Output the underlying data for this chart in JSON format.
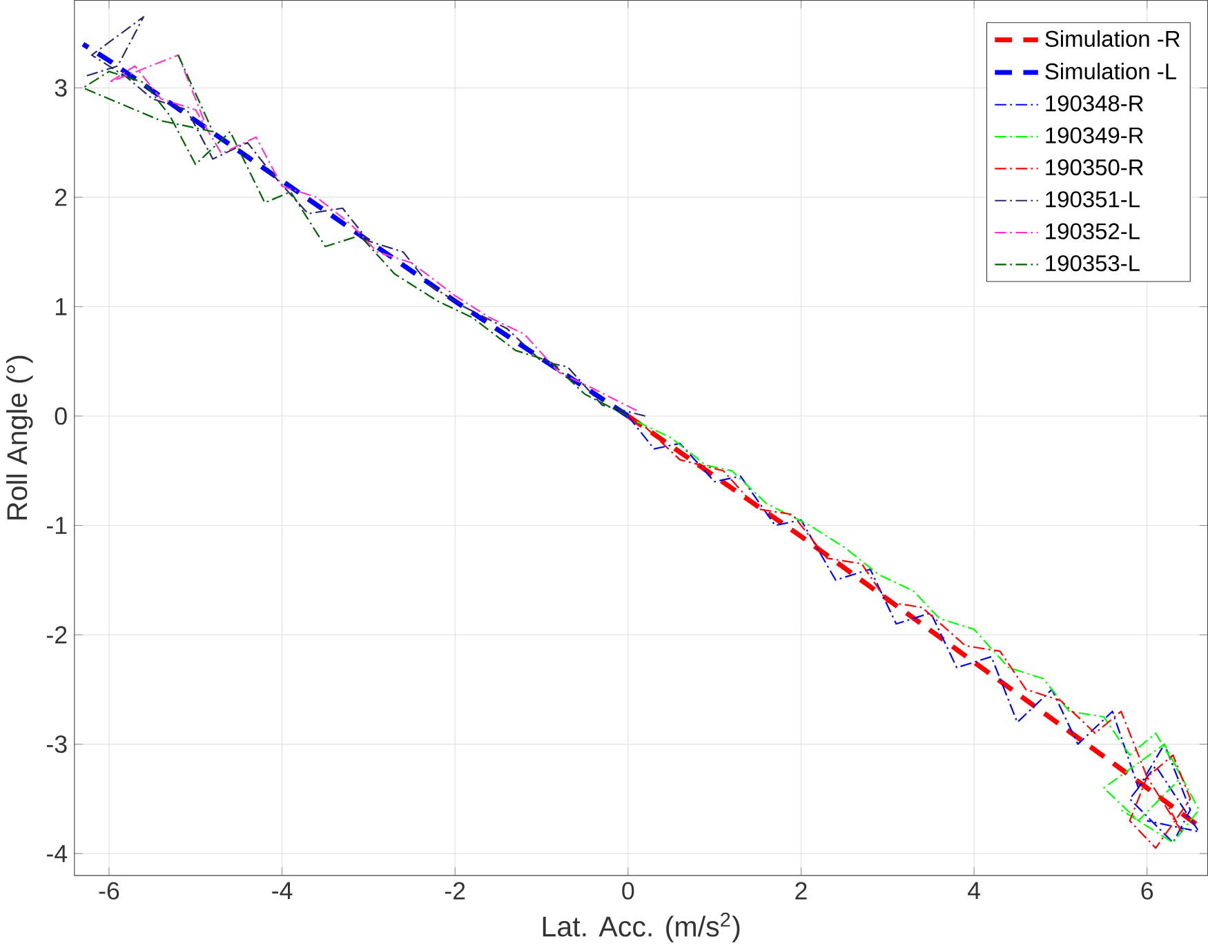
{
  "chart_data": {
    "type": "line",
    "xlabel": "Lat. Acc. (m/s$^{2}$)",
    "ylabel": "Roll Angle (°)",
    "xlim": [
      -6.4,
      6.7
    ],
    "ylim": [
      -4.2,
      3.8
    ],
    "xticks": [
      -6,
      -4,
      -2,
      0,
      2,
      4,
      6
    ],
    "yticks": [
      -4,
      -3,
      -2,
      -1,
      0,
      1,
      2,
      3
    ],
    "grid": true,
    "legend": "top right",
    "series": [
      {
        "name": "Simulation -R",
        "color": "#ff0000",
        "line_style": "dashed",
        "x": [
          0,
          2,
          4,
          6,
          6.6
        ],
        "values": [
          0,
          -1.1,
          -2.25,
          -3.4,
          -3.75
        ]
      },
      {
        "name": "Simulation -L",
        "color": "#0000ff",
        "line_style": "dashed",
        "x": [
          0,
          -2,
          -4,
          -6,
          -6.3
        ],
        "values": [
          0,
          1.05,
          2.15,
          3.25,
          3.4
        ]
      },
      {
        "name": "190348-R",
        "color": "#0000ff",
        "line_style": "dashdot",
        "x": [
          0,
          0.3,
          0.6,
          1.0,
          1.3,
          1.7,
          2.0,
          2.4,
          2.8,
          3.1,
          3.5,
          3.8,
          4.2,
          4.5,
          4.9,
          5.2,
          5.6,
          5.9,
          6.2,
          6.5,
          6.3,
          5.8,
          6.1,
          6.6,
          6.0
        ],
        "values": [
          0,
          -0.3,
          -0.25,
          -0.6,
          -0.55,
          -1.0,
          -0.95,
          -1.5,
          -1.4,
          -1.9,
          -1.8,
          -2.3,
          -2.2,
          -2.8,
          -2.5,
          -3.0,
          -2.7,
          -3.4,
          -3.0,
          -3.6,
          -3.9,
          -3.5,
          -3.2,
          -3.8,
          -3.7
        ]
      },
      {
        "name": "190349-R",
        "color": "#00ff00",
        "line_style": "dashdot",
        "x": [
          0.1,
          0.5,
          0.9,
          1.2,
          1.6,
          2.1,
          2.5,
          2.9,
          3.3,
          3.6,
          4.0,
          4.4,
          4.8,
          5.1,
          5.5,
          5.8,
          6.1,
          6.4,
          5.9,
          5.5,
          6.2,
          6.6,
          6.3,
          5.7
        ],
        "values": [
          -0.05,
          -0.2,
          -0.45,
          -0.5,
          -0.8,
          -1.0,
          -1.2,
          -1.45,
          -1.6,
          -1.85,
          -1.95,
          -2.3,
          -2.4,
          -2.7,
          -2.75,
          -3.1,
          -2.9,
          -3.3,
          -3.7,
          -3.4,
          -3.0,
          -3.6,
          -3.9,
          -3.6
        ]
      },
      {
        "name": "190350-R",
        "color": "#ff0000",
        "line_style": "dashdot",
        "x": [
          0.2,
          0.6,
          1.1,
          1.5,
          1.9,
          2.3,
          2.7,
          3.0,
          3.4,
          3.9,
          4.3,
          4.6,
          5.0,
          5.4,
          5.7,
          6.0,
          6.3,
          6.5,
          6.1,
          5.8,
          6.0,
          6.4,
          6.2
        ],
        "values": [
          -0.1,
          -0.4,
          -0.5,
          -0.85,
          -0.9,
          -1.3,
          -1.35,
          -1.7,
          -1.75,
          -2.1,
          -2.15,
          -2.5,
          -2.6,
          -2.9,
          -2.7,
          -3.3,
          -3.1,
          -3.5,
          -3.95,
          -3.7,
          -3.3,
          -3.8,
          -3.5
        ]
      },
      {
        "name": "190351-L",
        "color": "#2b2b66",
        "line_style": "dashdot",
        "x": [
          0.2,
          -0.3,
          -0.7,
          -1.0,
          -1.4,
          -1.9,
          -2.3,
          -2.6,
          -3.0,
          -3.3,
          -3.7,
          -4.1,
          -4.4,
          -4.8,
          -5.1,
          -5.5,
          -5.8,
          -6.2,
          -5.6,
          -5.9,
          -6.3
        ],
        "values": [
          0,
          0.1,
          0.45,
          0.5,
          0.8,
          1.0,
          1.2,
          1.5,
          1.6,
          1.9,
          1.85,
          2.2,
          2.5,
          2.35,
          2.8,
          2.9,
          3.1,
          3.3,
          3.65,
          3.2,
          3.1
        ]
      },
      {
        "name": "190352-L",
        "color": "#ff33cc",
        "line_style": "dashdot",
        "x": [
          0.1,
          -0.4,
          -0.8,
          -1.2,
          -1.6,
          -2.0,
          -2.5,
          -2.9,
          -3.2,
          -3.6,
          -4.0,
          -4.3,
          -4.7,
          -5.0,
          -5.4,
          -5.7,
          -6.0,
          -5.2,
          -4.9
        ],
        "values": [
          0.05,
          0.25,
          0.4,
          0.75,
          0.9,
          1.1,
          1.4,
          1.5,
          1.75,
          2.0,
          2.1,
          2.55,
          2.4,
          2.8,
          2.9,
          3.2,
          3.05,
          3.3,
          2.7
        ]
      },
      {
        "name": "190353-L",
        "color": "#006400",
        "line_style": "dashdot",
        "x": [
          0.0,
          -0.5,
          -0.9,
          -1.3,
          -1.8,
          -2.2,
          -2.7,
          -3.1,
          -3.5,
          -3.9,
          -4.2,
          -4.6,
          -5.0,
          -5.3,
          -5.6,
          -6.0,
          -6.3,
          -5.4,
          -4.8,
          -5.2
        ],
        "values": [
          0.0,
          0.2,
          0.5,
          0.6,
          0.9,
          1.05,
          1.3,
          1.65,
          1.55,
          2.05,
          1.95,
          2.6,
          2.3,
          2.75,
          3.05,
          3.15,
          3.0,
          2.7,
          2.6,
          3.3
        ]
      }
    ]
  }
}
